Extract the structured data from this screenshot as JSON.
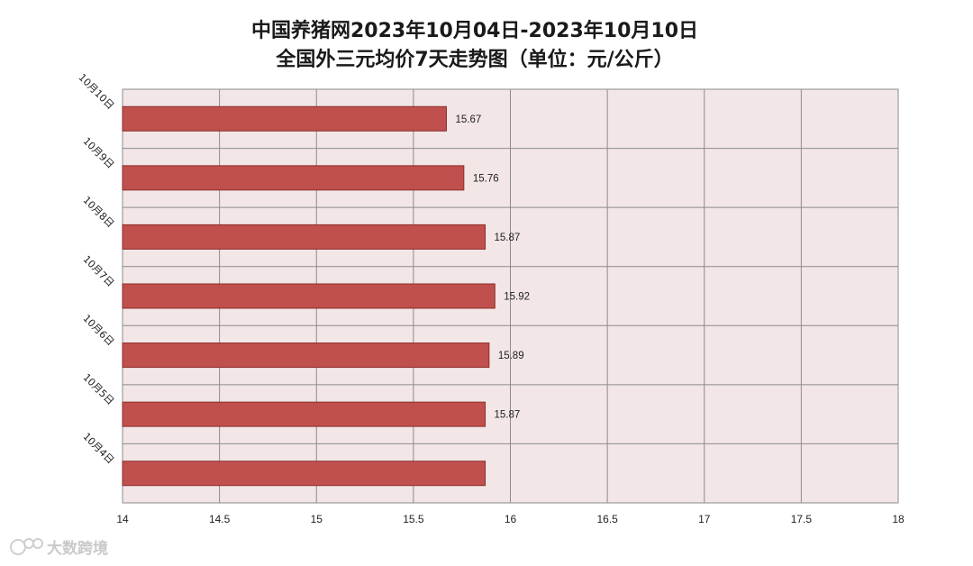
{
  "chart_data": {
    "type": "bar",
    "orientation": "horizontal",
    "title_line1": "中国养猪网2023年10月04日-2023年10月10日",
    "title_line2": "全国外三元均价7天走势图（单位：元/公斤）",
    "categories": [
      "10月10日",
      "10月9日",
      "10月8日",
      "10月7日",
      "10月6日",
      "10月5日",
      "10月4日"
    ],
    "values": [
      15.67,
      15.76,
      15.87,
      15.92,
      15.89,
      15.87,
      15.87
    ],
    "data_labels": [
      "15.67",
      "15.76",
      "15.87",
      "15.92",
      "15.89",
      "15.87",
      ""
    ],
    "x_ticks": [
      "14",
      "14.5",
      "15",
      "15.5",
      "16",
      "16.5",
      "17",
      "17.5",
      "18"
    ],
    "xlim": [
      14,
      18
    ],
    "grid": true,
    "bar_color": "#c0504d",
    "bar_border_color": "#8b2e2c",
    "plot_background": "#f2e6e6"
  },
  "watermark": {
    "text": "大数跨境",
    "icon": "brand-logo-icon"
  }
}
